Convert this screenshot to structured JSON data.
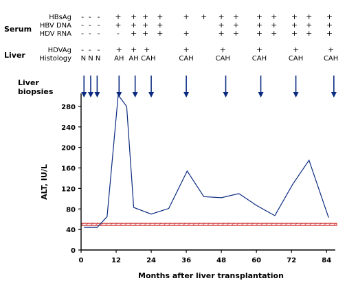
{
  "figure": {
    "serum_label": "Serum",
    "liver_label": "Liver",
    "biopsy_label_line1": "Liver",
    "biopsy_label_line2": "biopsies",
    "serum_rows": [
      {
        "label": "HBsAg",
        "marks": [
          "-",
          "-",
          "-",
          "+",
          "+",
          "+",
          "+",
          "+",
          "+",
          "+",
          "+",
          "+",
          "+",
          "+",
          "+",
          "+",
          "+"
        ]
      },
      {
        "label": "HBV DNA",
        "marks": [
          "-",
          "-",
          "-",
          "+",
          "+",
          "+",
          "+",
          "",
          "",
          "+",
          "+",
          "+",
          "+",
          "+",
          "+",
          "+",
          "+"
        ]
      },
      {
        "label": "HDV RNA",
        "marks": [
          "-",
          "-",
          "-",
          "-",
          "+",
          "+",
          "+",
          "+",
          "",
          "+",
          "+",
          "+",
          "+",
          "+",
          "+",
          "+",
          "+"
        ]
      }
    ],
    "serum_x_months": [
      0.5,
      3,
      6,
      12.7,
      18,
      22,
      27,
      36,
      42,
      48,
      53,
      61,
      66,
      73,
      78,
      85,
      0
    ],
    "liver_rows": [
      {
        "label": "HDVAg",
        "entries": [
          {
            "month": 0.5,
            "mark": "-"
          },
          {
            "month": 3,
            "mark": "-"
          },
          {
            "month": 6,
            "mark": "-"
          },
          {
            "month": 13,
            "mark": "+"
          },
          {
            "month": 18,
            "mark": "+"
          },
          {
            "month": 22.5,
            "mark": "+"
          },
          {
            "month": 36,
            "mark": "+"
          },
          {
            "month": 48.5,
            "mark": "+"
          },
          {
            "month": 61,
            "mark": "+"
          },
          {
            "month": 73.5,
            "mark": "+"
          },
          {
            "month": 85.5,
            "mark": "+"
          }
        ]
      },
      {
        "label": "Histology",
        "entries": [
          {
            "month": 0.8,
            "mark": "N"
          },
          {
            "month": 3.3,
            "mark": "N"
          },
          {
            "month": 5.8,
            "mark": "N"
          },
          {
            "month": 13,
            "mark": "AH"
          },
          {
            "month": 18,
            "mark": "AH"
          },
          {
            "month": 23,
            "mark": "CAH"
          },
          {
            "month": 36,
            "mark": "CAH"
          },
          {
            "month": 48.5,
            "mark": "CAH"
          },
          {
            "month": 61,
            "mark": "CAH"
          },
          {
            "month": 73.5,
            "mark": "CAH"
          },
          {
            "month": 85.5,
            "mark": "CAH"
          }
        ]
      }
    ],
    "biopsy_months": [
      1,
      3.3,
      5.5,
      13,
      18.5,
      24,
      36,
      49.5,
      61.5,
      73.5,
      86.5
    ],
    "normal_band": {
      "low": 48,
      "high": 52
    },
    "colors": {
      "line": "#0a2a80",
      "arrow": "#0a2a80",
      "band_stroke": "#cc2222",
      "band_hatch": "#cc2222",
      "axis": "#000000"
    }
  },
  "chart_data": {
    "type": "line",
    "title": "",
    "xlabel": "Months after liver transplantation",
    "ylabel": "ALT, IU/L",
    "xlim": [
      0,
      87
    ],
    "ylim": [
      0,
      300
    ],
    "x_ticks": [
      0,
      12,
      24,
      36,
      48,
      60,
      72,
      84
    ],
    "y_ticks": [
      0,
      40,
      80,
      120,
      160,
      200,
      240,
      280
    ],
    "grid": false,
    "series": [
      {
        "x": [
          1,
          3.3,
          5.5,
          8.9,
          12.7,
          15.6,
          18,
          24,
          30,
          36.3,
          42,
          48,
          54,
          60,
          66.3,
          72.4,
          78,
          84.7
        ],
        "values": [
          44,
          44,
          44,
          65,
          302,
          280,
          83,
          70,
          81,
          154,
          104,
          102,
          110,
          87,
          67,
          128,
          175,
          63
        ]
      }
    ]
  }
}
